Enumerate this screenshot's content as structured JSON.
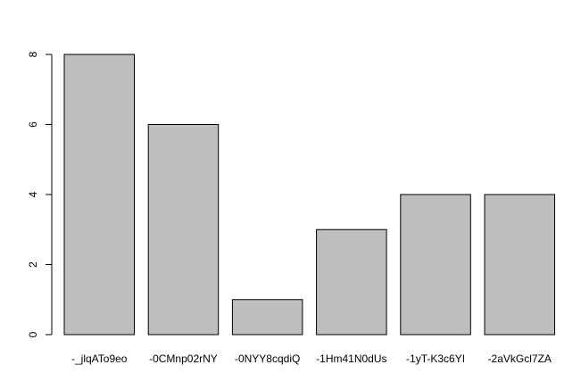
{
  "chart_data": {
    "type": "bar",
    "categories": [
      "-_jlqATo9eo",
      "-0CMnp02rNY",
      "-0NYY8cqdiQ",
      "-1Hm41N0dUs",
      "-1yT-K3c6YI",
      "-2aVkGcl7ZA"
    ],
    "values": [
      8,
      6,
      1,
      3,
      4,
      4
    ],
    "color": "#bebebe",
    "ylim": [
      0,
      8
    ],
    "yticks": [
      0,
      2,
      4,
      6,
      8
    ],
    "grid": false
  }
}
